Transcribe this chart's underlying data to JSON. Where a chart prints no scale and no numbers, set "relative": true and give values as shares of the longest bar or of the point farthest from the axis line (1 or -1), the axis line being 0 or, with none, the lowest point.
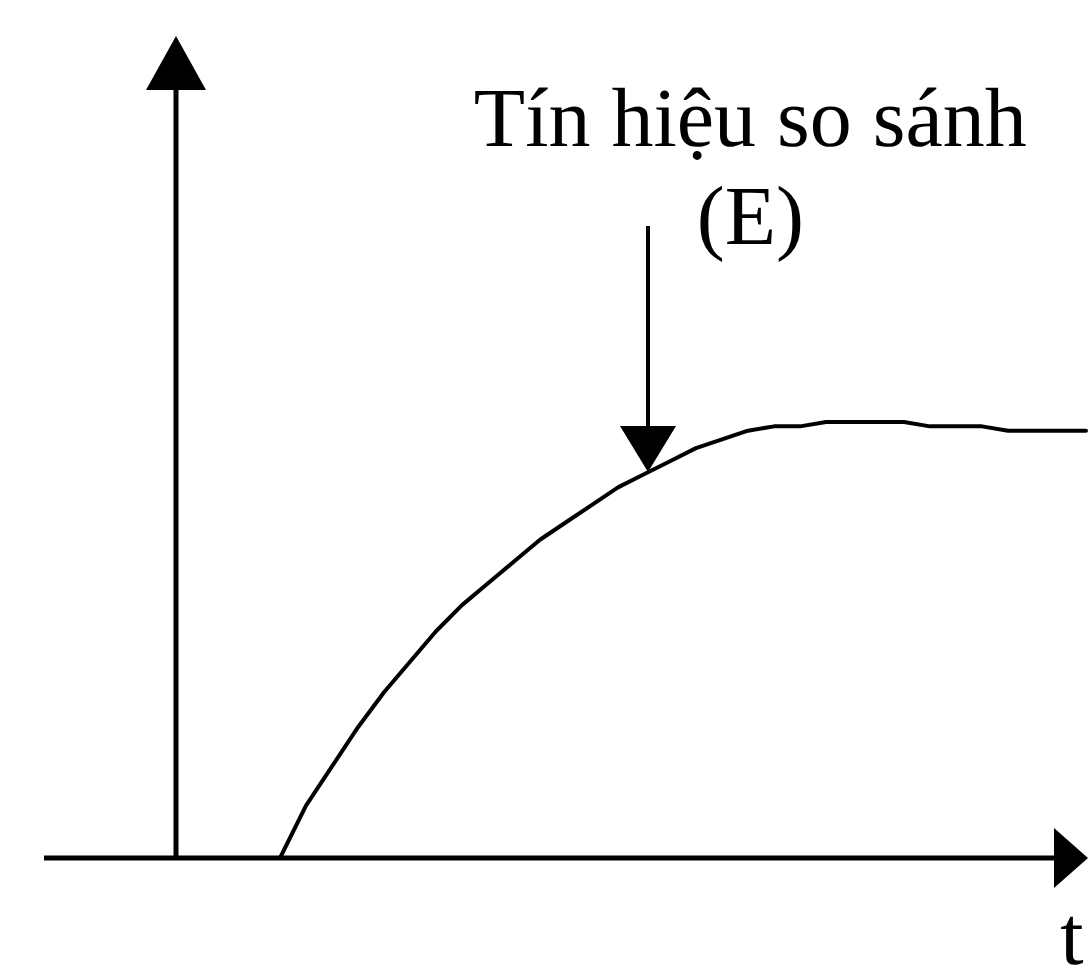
{
  "chart_data": {
    "type": "line",
    "relative": true,
    "xlabel": "t",
    "categories": [
      null,
      null,
      null,
      null,
      null,
      null,
      null,
      null,
      null,
      null,
      null,
      null,
      null,
      null,
      null,
      null,
      null,
      null,
      null,
      null,
      null,
      null,
      null,
      null,
      null,
      null,
      null,
      null,
      null,
      null,
      null,
      null,
      null,
      null,
      null,
      null
    ],
    "values": [
      null,
      null,
      null,
      null,
      0,
      0.12,
      0.21,
      0.3,
      0.38,
      0.45,
      0.52,
      0.58,
      0.63,
      0.68,
      0.73,
      0.77,
      0.81,
      0.85,
      0.88,
      0.91,
      0.94,
      0.96,
      0.98,
      0.99,
      0.99,
      1,
      1,
      1,
      1,
      0.99,
      0.99,
      0.99,
      0.98,
      0.98,
      0.98,
      0.98
    ],
    "color": "#000000",
    "marker": "none",
    "line_style": "solid",
    "annotations": [
      "Tín hiệu so sánh (E)"
    ]
  }
}
